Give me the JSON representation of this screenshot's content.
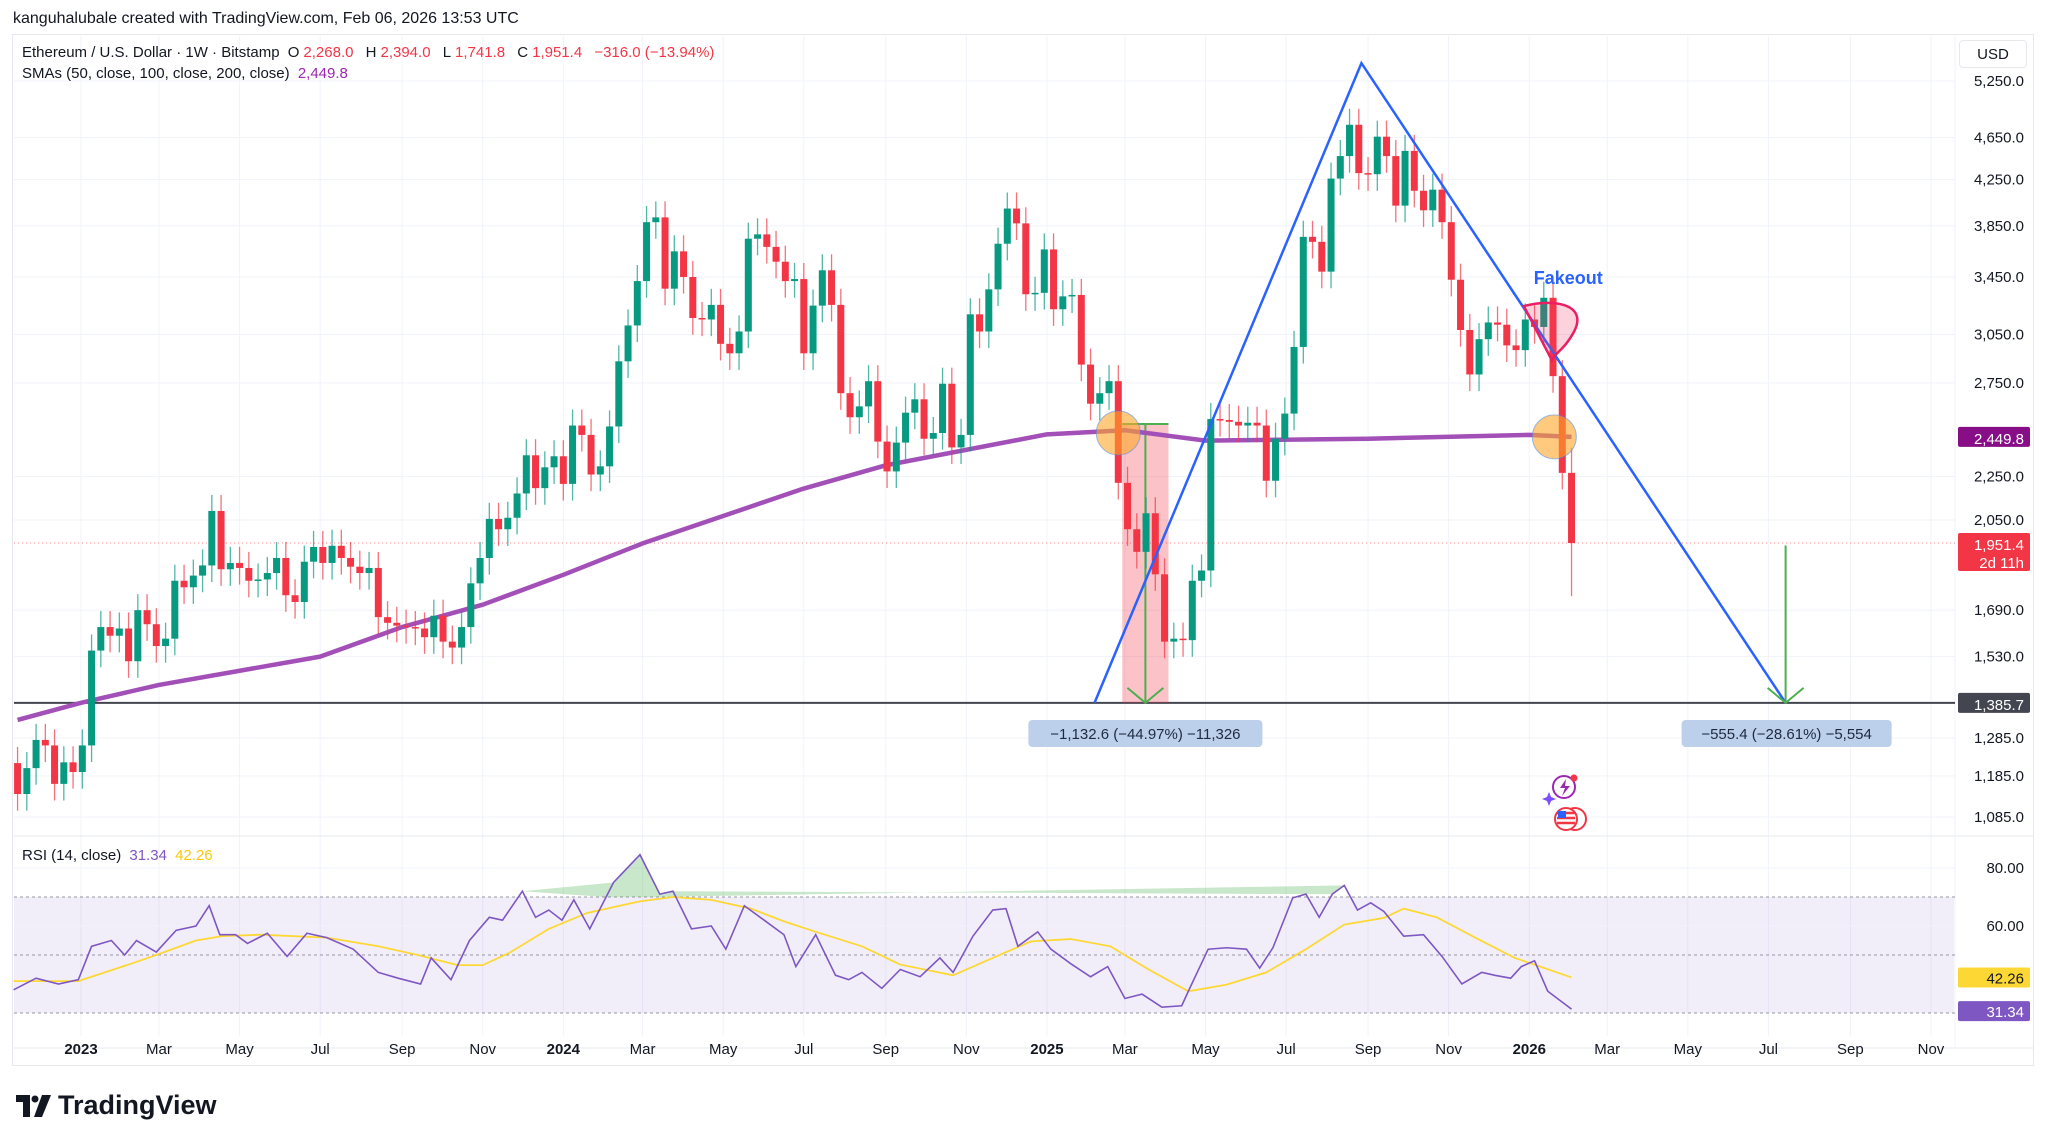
{
  "attribution": "kanguhalubale created with TradingView.com, Feb 06, 2026 13:53 UTC",
  "legend": {
    "symbol": "Ethereum / U.S. Dollar · 1W · Bitstamp",
    "o_label": "O",
    "o": "2,268.0",
    "h_label": "H",
    "h": "2,394.0",
    "l_label": "L",
    "l": "1,741.8",
    "c_label": "C",
    "c": "1,951.4",
    "change": "−316.0 (−13.94%)",
    "sma_label": "SMAs (50, close, 100, close, 200, close)",
    "sma_value": "2,449.8"
  },
  "currency": "USD",
  "brand": "TradingView",
  "colors": {
    "up": "#089981",
    "down": "#f23645",
    "sma": "#a34fb8",
    "trend": "#2962ff",
    "rsi": "#7e57c2",
    "rsi_ma": "#fdd835",
    "measure": "#4caf50"
  },
  "chart_data": [
    {
      "type": "candlestick",
      "title": "Ethereum / U.S. Dollar · 1W · Bitstamp",
      "y_scale": "log",
      "ylim": [
        1040,
        5500
      ],
      "grid": true,
      "first_week": "2022-11-14",
      "first_open": 1218,
      "weekly_closes": [
        1140,
        1205,
        1280,
        1265,
        1165,
        1220,
        1195,
        1265,
        1550,
        1630,
        1600,
        1625,
        1515,
        1690,
        1640,
        1565,
        1590,
        1800,
        1775,
        1820,
        1860,
        2090,
        1845,
        1870,
        1850,
        1800,
        1805,
        1830,
        1890,
        1745,
        1720,
        1875,
        1935,
        1870,
        1940,
        1890,
        1855,
        1830,
        1850,
        1665,
        1645,
        1635,
        1630,
        1625,
        1595,
        1670,
        1580,
        1560,
        1630,
        1790,
        1890,
        2055,
        2010,
        2060,
        2170,
        2355,
        2195,
        2295,
        2350,
        2215,
        2510,
        2460,
        2260,
        2300,
        2505,
        2880,
        3110,
        3420,
        3880,
        3920,
        3365,
        3645,
        3450,
        3160,
        3150,
        3250,
        2990,
        2930,
        3070,
        3745,
        3780,
        3680,
        3565,
        3420,
        3435,
        2930,
        3245,
        3500,
        3250,
        2690,
        2555,
        2615,
        2760,
        2425,
        2275,
        2420,
        2580,
        2655,
        2440,
        2470,
        2745,
        2395,
        2460,
        3185,
        3070,
        3360,
        3705,
        3995,
        3870,
        3325,
        3335,
        3660,
        3220,
        3310,
        3320,
        2860,
        2630,
        2690,
        2760,
        2220,
        2010,
        1915,
        2080,
        1825,
        1580,
        1590,
        1585,
        1800,
        1840,
        2545,
        2540,
        2530,
        2510,
        2525,
        2510,
        2230,
        2440,
        2575,
        2970,
        3760,
        3720,
        3490,
        4260,
        4470,
        4780,
        4310,
        4300,
        4660,
        4470,
        4020,
        4520,
        4150,
        3980,
        4160,
        3880,
        3430,
        3080,
        2800,
        3020,
        3130,
        3115,
        2980,
        2950,
        3150,
        3100,
        3300,
        2790,
        2268,
        1951.4
      ],
      "last_candle": {
        "open": 2268.0,
        "high": 2394.0,
        "low": 1741.8,
        "close": 1951.4
      },
      "sma200": [
        [
          "2022-11-14",
          1336
        ],
        [
          "2023-01-01",
          1386
        ],
        [
          "2023-03-01",
          1440
        ],
        [
          "2023-07-01",
          1530
        ],
        [
          "2023-09-01",
          1630
        ],
        [
          "2023-11-01",
          1710
        ],
        [
          "2024-01-01",
          1823
        ],
        [
          "2024-03-01",
          1950
        ],
        [
          "2024-07-01",
          2193
        ],
        [
          "2024-09-01",
          2305
        ],
        [
          "2025-01-01",
          2463
        ],
        [
          "2025-03-01",
          2485
        ],
        [
          "2025-05-01",
          2430
        ],
        [
          "2025-09-01",
          2440
        ],
        [
          "2026-01-01",
          2460
        ],
        [
          "2026-02-02",
          2449.8
        ]
      ],
      "y_ticks": [
        "5,250.0",
        "4,650.0",
        "4,250.0",
        "3,850.0",
        "3,450.0",
        "3,050.0",
        "2,750.0",
        "2,250.0",
        "2,050.0",
        "1,690.0",
        "1,530.0",
        "1,285.0",
        "1,185.0",
        "1,085.0"
      ],
      "price_labels": {
        "sma": "2,449.8",
        "last": "1,951.4",
        "countdown": "2d 11h",
        "support": "1,385.7"
      },
      "support_level": 1385.7,
      "annotations": {
        "triangle": [
          [
            "2025-02-06",
            1385.7
          ],
          [
            "2025-08-27",
            5455
          ],
          [
            "2026-07-14",
            1385.7
          ]
        ],
        "measure_past": {
          "from": "2025-02-27",
          "to": "2025-04-03",
          "top": 2518.3,
          "bottom": 1385.7,
          "label": "−1,132.6 (−44.97%) −11,326"
        },
        "measure_projected": {
          "date": "2026-07-14",
          "top": 1941.1,
          "bottom": 1385.7,
          "label": "−555.4 (−28.61%) −5,554"
        },
        "highlights": [
          [
            "2025-02-24",
            2470
          ],
          [
            "2026-01-20",
            2450
          ]
        ],
        "fakeout": {
          "text": "Fakeout",
          "date": "2026-01-12",
          "price": 3200
        }
      },
      "x_ticks": [
        [
          "2023",
          "2023-01-01",
          true
        ],
        [
          "Mar",
          "2023-03-01",
          false
        ],
        [
          "May",
          "2023-05-01",
          false
        ],
        [
          "Jul",
          "2023-07-01",
          false
        ],
        [
          "Sep",
          "2023-09-01",
          false
        ],
        [
          "Nov",
          "2023-11-01",
          false
        ],
        [
          "2024",
          "2024-01-01",
          true
        ],
        [
          "Mar",
          "2024-03-01",
          false
        ],
        [
          "May",
          "2024-05-01",
          false
        ],
        [
          "Jul",
          "2024-07-01",
          false
        ],
        [
          "Sep",
          "2024-09-01",
          false
        ],
        [
          "Nov",
          "2024-11-01",
          false
        ],
        [
          "2025",
          "2025-01-01",
          true
        ],
        [
          "Mar",
          "2025-03-01",
          false
        ],
        [
          "May",
          "2025-05-01",
          false
        ],
        [
          "Jul",
          "2025-07-01",
          false
        ],
        [
          "Sep",
          "2025-09-01",
          false
        ],
        [
          "Nov",
          "2025-11-01",
          false
        ],
        [
          "2026",
          "2026-01-01",
          true
        ],
        [
          "Mar",
          "2026-03-01",
          false
        ],
        [
          "May",
          "2026-05-01",
          false
        ],
        [
          "Jul",
          "2026-07-01",
          false
        ],
        [
          "Sep",
          "2026-09-01",
          false
        ],
        [
          "Nov",
          "2026-11-01",
          false
        ]
      ]
    },
    {
      "type": "line",
      "title": "RSI (14, close)",
      "rsi_value": "31.34",
      "ma_value": "42.26",
      "ylim": [
        22,
        88
      ],
      "y_ticks": [
        "80.00",
        "60.00"
      ],
      "bands": [
        30,
        50,
        70
      ],
      "rsi": [
        [
          "2022-11-11",
          38
        ],
        [
          "2022-11-28",
          42
        ],
        [
          "2022-12-15",
          40
        ],
        [
          "2022-12-30",
          41.5
        ],
        [
          "2023-01-09",
          53
        ],
        [
          "2023-01-24",
          55
        ],
        [
          "2023-02-03",
          50
        ],
        [
          "2023-02-12",
          55
        ],
        [
          "2023-02-27",
          51
        ],
        [
          "2023-03-14",
          58.5
        ],
        [
          "2023-03-29",
          60
        ],
        [
          "2023-04-08",
          67
        ],
        [
          "2023-04-16",
          57
        ],
        [
          "2023-04-28",
          57
        ],
        [
          "2023-05-07",
          54
        ],
        [
          "2023-05-22",
          57.5
        ],
        [
          "2023-06-06",
          49.5
        ],
        [
          "2023-06-21",
          57.5
        ],
        [
          "2023-07-06",
          56
        ],
        [
          "2023-07-26",
          52
        ],
        [
          "2023-08-14",
          44
        ],
        [
          "2023-08-29",
          42
        ],
        [
          "2023-09-15",
          40
        ],
        [
          "2023-09-23",
          49
        ],
        [
          "2023-10-08",
          41.5
        ],
        [
          "2023-10-22",
          55
        ],
        [
          "2023-11-06",
          63
        ],
        [
          "2023-11-16",
          62
        ],
        [
          "2023-12-01",
          72
        ],
        [
          "2023-12-11",
          63
        ],
        [
          "2023-12-21",
          65.5
        ],
        [
          "2023-12-31",
          62
        ],
        [
          "2024-01-09",
          69
        ],
        [
          "2024-01-21",
          59
        ],
        [
          "2024-02-08",
          75
        ],
        [
          "2024-02-28",
          84.6
        ],
        [
          "2024-03-14",
          71
        ],
        [
          "2024-03-24",
          72
        ],
        [
          "2024-04-07",
          59
        ],
        [
          "2024-04-22",
          60
        ],
        [
          "2024-05-03",
          52
        ],
        [
          "2024-05-17",
          67
        ],
        [
          "2024-06-01",
          62
        ],
        [
          "2024-06-16",
          57
        ],
        [
          "2024-06-25",
          46
        ],
        [
          "2024-07-10",
          57
        ],
        [
          "2024-07-25",
          43
        ],
        [
          "2024-08-04",
          41.5
        ],
        [
          "2024-08-14",
          44
        ],
        [
          "2024-08-29",
          38.5
        ],
        [
          "2024-09-12",
          45
        ],
        [
          "2024-09-27",
          42.5
        ],
        [
          "2024-10-12",
          49
        ],
        [
          "2024-10-22",
          44
        ],
        [
          "2024-11-06",
          56.5
        ],
        [
          "2024-11-21",
          65.5
        ],
        [
          "2024-12-01",
          66
        ],
        [
          "2024-12-10",
          53
        ],
        [
          "2024-12-25",
          58
        ],
        [
          "2025-01-04",
          52
        ],
        [
          "2025-01-19",
          47
        ],
        [
          "2025-02-03",
          42.5
        ],
        [
          "2025-02-16",
          46
        ],
        [
          "2025-03-01",
          35
        ],
        [
          "2025-03-14",
          36.5
        ],
        [
          "2025-03-29",
          32
        ],
        [
          "2025-04-13",
          32.5
        ],
        [
          "2025-04-18",
          37.5
        ],
        [
          "2025-05-03",
          52
        ],
        [
          "2025-05-17",
          52.5
        ],
        [
          "2025-06-01",
          52
        ],
        [
          "2025-06-11",
          45.5
        ],
        [
          "2025-06-21",
          52.5
        ],
        [
          "2025-07-06",
          69.7
        ],
        [
          "2025-07-16",
          71
        ],
        [
          "2025-07-26",
          63
        ],
        [
          "2025-08-05",
          71
        ],
        [
          "2025-08-14",
          74
        ],
        [
          "2025-08-24",
          65.5
        ],
        [
          "2025-09-03",
          68
        ],
        [
          "2025-09-13",
          65
        ],
        [
          "2025-09-28",
          56.5
        ],
        [
          "2025-10-13",
          57
        ],
        [
          "2025-10-27",
          49.5
        ],
        [
          "2025-11-11",
          40
        ],
        [
          "2025-11-26",
          44
        ],
        [
          "2025-12-06",
          43
        ],
        [
          "2025-12-18",
          42
        ],
        [
          "2025-12-26",
          46
        ],
        [
          "2026-01-05",
          48
        ],
        [
          "2026-01-15",
          37.5
        ],
        [
          "2026-02-02",
          31.34
        ]
      ],
      "rsi_ma": [
        [
          "2022-11-11",
          41
        ],
        [
          "2022-12-30",
          41
        ],
        [
          "2023-01-19",
          44
        ],
        [
          "2023-02-08",
          47
        ],
        [
          "2023-02-27",
          50
        ],
        [
          "2023-03-29",
          55
        ],
        [
          "2023-04-18",
          56.5
        ],
        [
          "2023-05-17",
          57
        ],
        [
          "2023-07-06",
          56
        ],
        [
          "2023-08-14",
          53
        ],
        [
          "2023-09-13",
          50
        ],
        [
          "2023-10-13",
          46.5
        ],
        [
          "2023-11-01",
          46.5
        ],
        [
          "2023-11-21",
          50.7
        ],
        [
          "2023-12-21",
          59
        ],
        [
          "2024-01-19",
          64.5
        ],
        [
          "2024-02-28",
          68.5
        ],
        [
          "2024-03-24",
          70
        ],
        [
          "2024-04-22",
          69
        ],
        [
          "2024-05-22",
          66
        ],
        [
          "2024-06-16",
          61.6
        ],
        [
          "2024-07-10",
          58
        ],
        [
          "2024-08-14",
          53
        ],
        [
          "2024-09-12",
          46.7
        ],
        [
          "2024-10-22",
          43
        ],
        [
          "2024-11-21",
          49
        ],
        [
          "2024-12-20",
          54.7
        ],
        [
          "2025-01-19",
          55.5
        ],
        [
          "2025-02-18",
          53
        ],
        [
          "2025-03-19",
          45
        ],
        [
          "2025-04-18",
          37.5
        ],
        [
          "2025-05-17",
          39.8
        ],
        [
          "2025-06-16",
          44
        ],
        [
          "2025-07-16",
          52
        ],
        [
          "2025-08-14",
          60.5
        ],
        [
          "2025-09-13",
          62.8
        ],
        [
          "2025-09-28",
          66
        ],
        [
          "2025-10-23",
          63
        ],
        [
          "2025-11-21",
          56
        ],
        [
          "2025-12-21",
          49
        ],
        [
          "2026-02-02",
          42.26
        ]
      ]
    }
  ]
}
